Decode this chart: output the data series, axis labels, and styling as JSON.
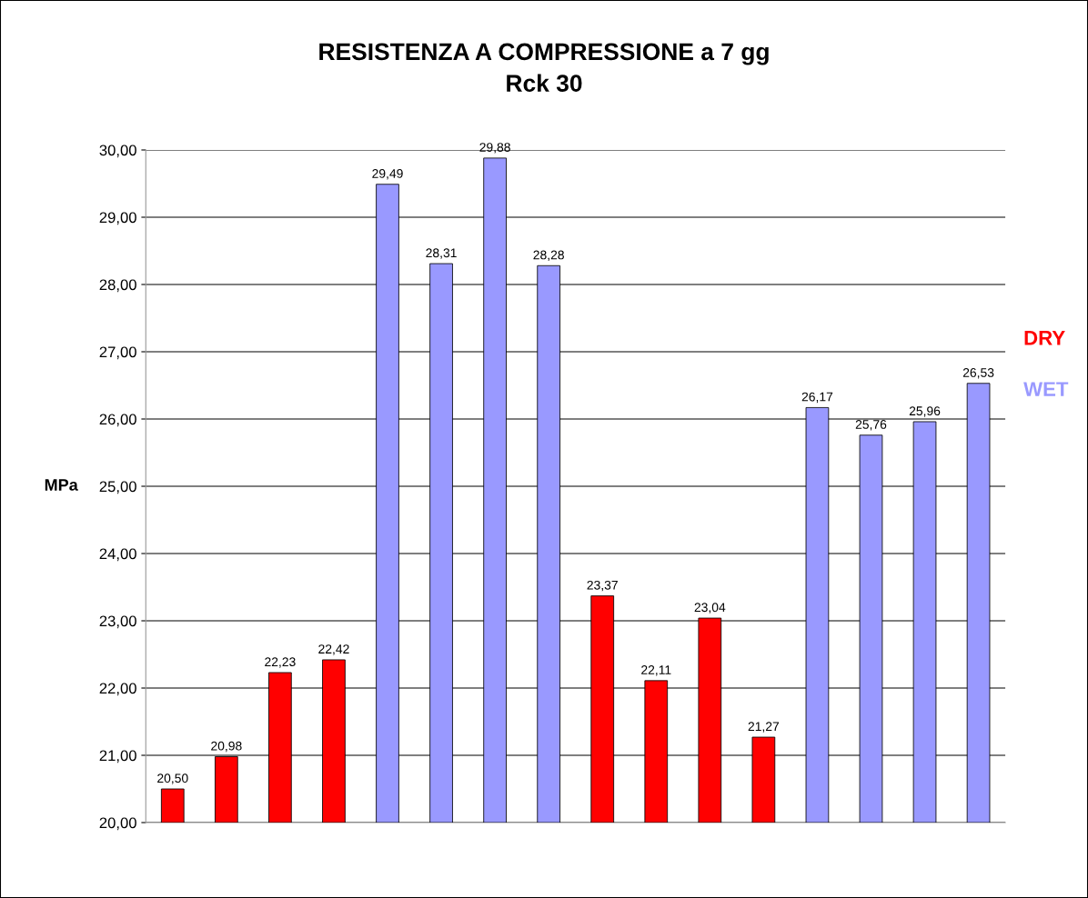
{
  "chart_data": {
    "type": "bar",
    "title": "RESISTENZA A COMPRESSIONE a 7 gg",
    "subtitle": "Rck 30",
    "ylabel": "MPa",
    "categories": [
      null,
      null,
      null,
      null,
      null,
      null,
      null,
      null,
      null,
      null,
      null,
      null,
      null,
      null,
      null,
      null
    ],
    "series": [
      {
        "name": "DRY",
        "color": "#ff0000",
        "values": [
          20.5,
          20.98,
          22.23,
          22.42,
          null,
          null,
          null,
          null,
          23.37,
          22.11,
          23.04,
          21.27,
          null,
          null,
          null,
          null
        ],
        "value_labels": [
          "20,50",
          "20,98",
          "22,23",
          "22,42",
          null,
          null,
          null,
          null,
          "23,37",
          "22,11",
          "23,04",
          "21,27",
          null,
          null,
          null,
          null
        ]
      },
      {
        "name": "WET",
        "color": "#9999ff",
        "values": [
          null,
          null,
          null,
          null,
          29.49,
          28.31,
          29.88,
          28.28,
          null,
          null,
          null,
          null,
          26.17,
          25.76,
          25.96,
          26.53
        ],
        "value_labels": [
          null,
          null,
          null,
          null,
          "29,49",
          "28,31",
          "29,88",
          "28,28",
          null,
          null,
          null,
          null,
          "26,17",
          "25,76",
          "25,96",
          "26,53"
        ]
      }
    ],
    "ylim": [
      20,
      30
    ],
    "yticks": [
      {
        "value": 20,
        "label": "20,00"
      },
      {
        "value": 21,
        "label": "21,00"
      },
      {
        "value": 22,
        "label": "22,00"
      },
      {
        "value": 23,
        "label": "23,00"
      },
      {
        "value": 24,
        "label": "24,00"
      },
      {
        "value": 25,
        "label": "25,00"
      },
      {
        "value": 26,
        "label": "26,00"
      },
      {
        "value": 27,
        "label": "27,00"
      },
      {
        "value": 28,
        "label": "28,00"
      },
      {
        "value": 29,
        "label": "29,00"
      },
      {
        "value": 30,
        "label": "30,00"
      }
    ],
    "grid": "y",
    "legend": "right"
  }
}
